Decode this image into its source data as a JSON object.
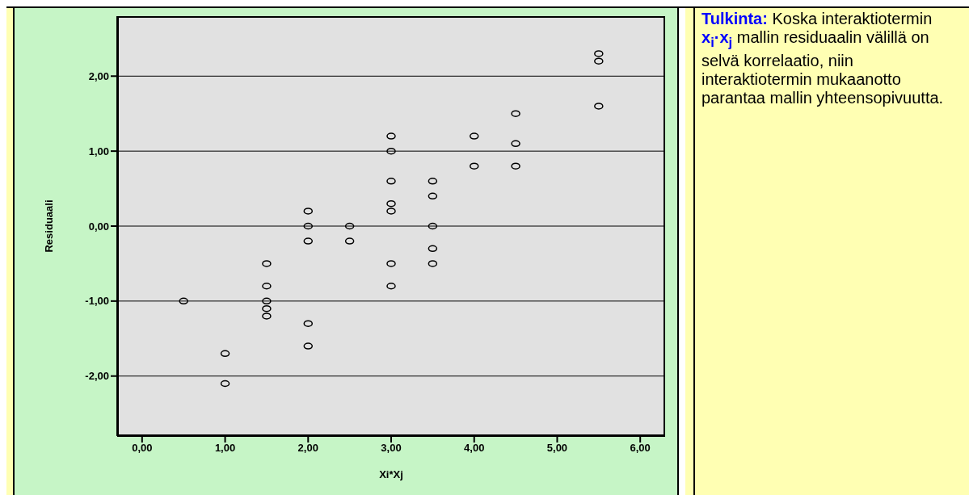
{
  "chart_data": {
    "type": "scatter",
    "xlabel": "Xi*Xj",
    "ylabel": "Residuaali",
    "x": [
      0.5,
      1,
      1,
      1.5,
      1.5,
      1.5,
      1.5,
      1.5,
      2,
      2,
      2,
      2,
      2,
      2.5,
      2.5,
      3,
      3,
      3,
      3,
      3,
      3,
      3,
      3.5,
      3.5,
      3.5,
      3.5,
      3.5,
      4,
      4,
      4.5,
      4.5,
      4.5,
      5.5,
      5.5,
      5.5
    ],
    "series": [
      {
        "color": "#000000",
        "values": [
          -1.0,
          -1.7,
          -2.1,
          -0.5,
          -0.8,
          -1.0,
          -1.1,
          -1.2,
          0.2,
          0,
          -0.2,
          -1.3,
          -1.6,
          0,
          -0.2,
          1.2,
          1.0,
          0.6,
          0.3,
          0.2,
          -0.5,
          -0.8,
          0.6,
          0.4,
          0,
          -0.3,
          -0.5,
          1.2,
          0.8,
          1.5,
          1.1,
          0.8,
          2.3,
          2.2,
          1.6
        ]
      }
    ],
    "xlim": [
      -0.3,
      6.3
    ],
    "xticks": [
      {
        "value": 0,
        "label": "0,00"
      },
      {
        "value": 1,
        "label": "1,00"
      },
      {
        "value": 2,
        "label": "2,00"
      },
      {
        "value": 3,
        "label": "3,00"
      },
      {
        "value": 4,
        "label": "4,00"
      },
      {
        "value": 5,
        "label": "5,00"
      },
      {
        "value": 6,
        "label": "6,00"
      }
    ],
    "ylim": [
      -2.8,
      2.8
    ],
    "yticks": [
      {
        "value": -2,
        "label": "-2,00"
      },
      {
        "value": -1,
        "label": "-1,00"
      },
      {
        "value": 0,
        "label": "0,00"
      },
      {
        "value": 1,
        "label": "1,00"
      },
      {
        "value": 2,
        "label": "2,00"
      }
    ],
    "grid": "y",
    "marker": "circle",
    "legend": false,
    "annotations": [
      "Tulkinta:",
      "Koska interaktiotermin x$_{i}$·x$_{j}$ mallin residuaalin välillä on selvä korrelaatio, niin interaktiotermin mukaanotto parantaa mallin yhteensopivuutta."
    ]
  }
}
